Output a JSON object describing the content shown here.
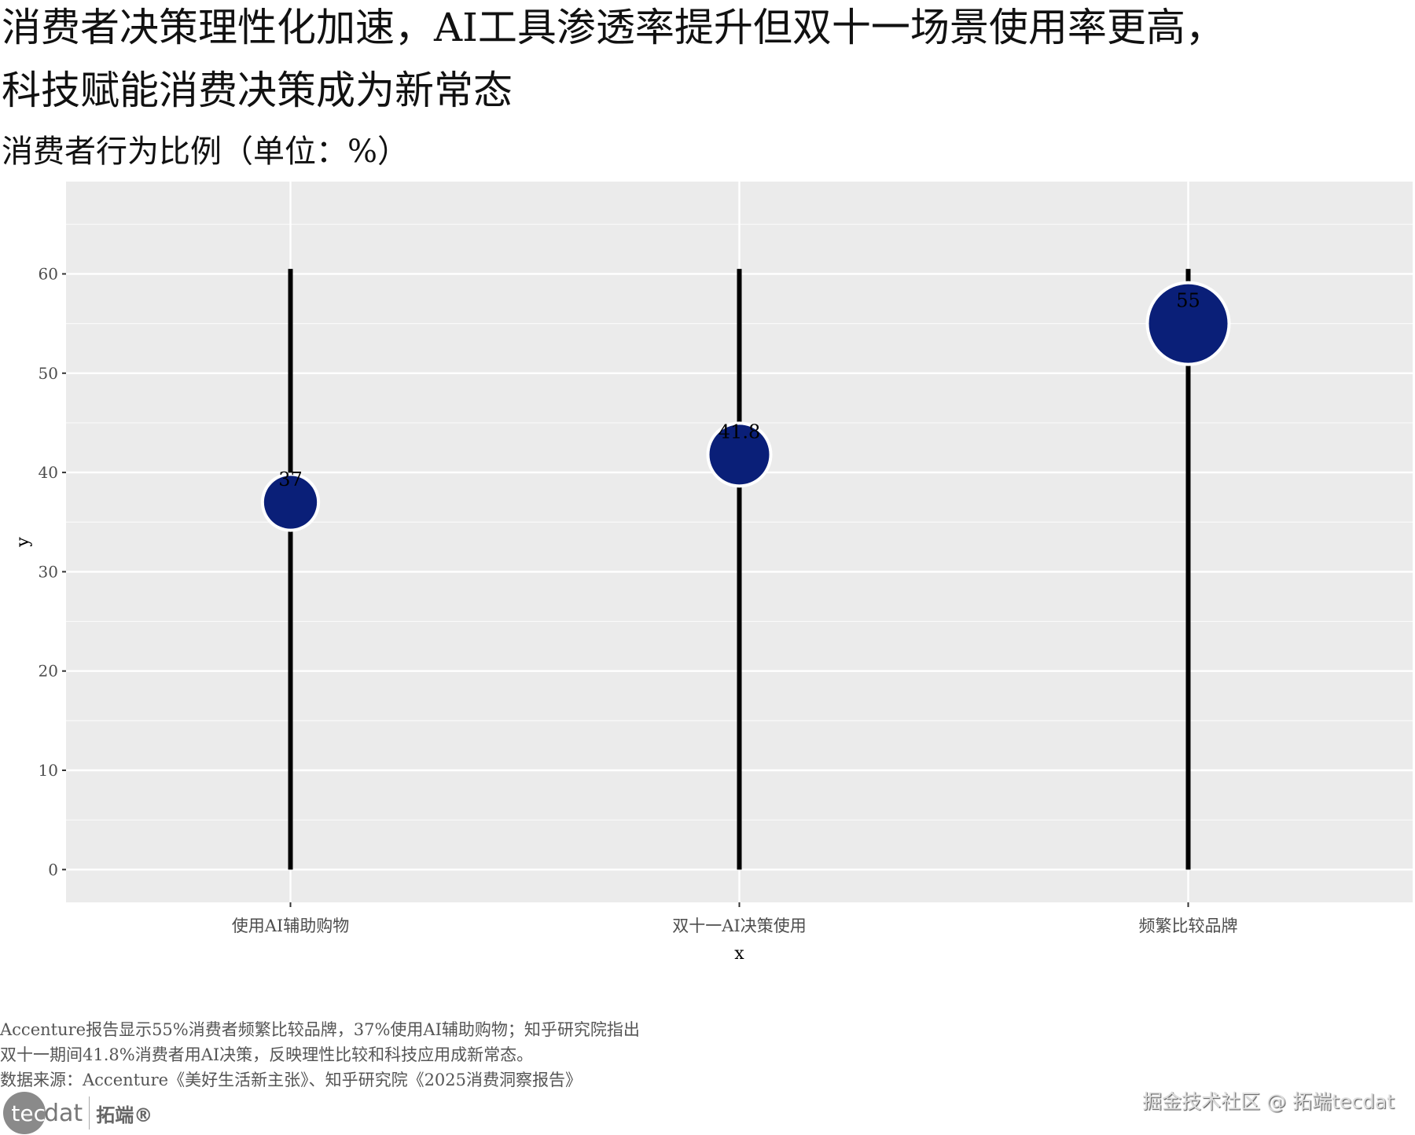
{
  "title_line1": "消费者决策理性化加速，AI工具渗透率提升但双十一场景使用率更高，",
  "title_line2": "科技赋能消费决策成为新常态",
  "subtitle": "消费者行为比例（单位：%）",
  "chart_data": {
    "type": "lollipop",
    "categories": [
      "使用AI辅助购物",
      "双十一AI决策使用",
      "频繁比较品牌"
    ],
    "values": [
      37,
      41.8,
      55
    ],
    "data_labels": [
      "37",
      "41.8",
      "55"
    ],
    "segment_top": 60.5,
    "xlabel": "x",
    "ylabel": "y",
    "ylim": [
      -3.3,
      69.3
    ],
    "yticks": [
      0,
      10,
      20,
      30,
      40,
      50,
      60
    ],
    "grid": true,
    "point_color": "#0a1f78",
    "segment_color": "#000000",
    "panel_color": "#ebebeb"
  },
  "caption": [
    "Accenture报告显示55%消费者频繁比较品牌，37%使用AI辅助购物；知乎研究院指出",
    "双十一期间41.8%消费者用AI决策，反映理性比较和科技应用成新常态。",
    "数据来源：Accenture《美好生活新主张》、知乎研究院《2025消费洞察报告》"
  ],
  "logo": {
    "left": "tec",
    "right": "dat",
    "cn": "拓端®"
  },
  "watermark": "掘金技术社区 @ 拓端tecdat"
}
